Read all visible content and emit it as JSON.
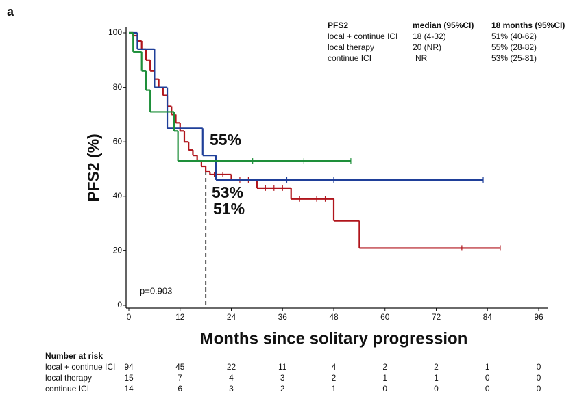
{
  "chart_data": {
    "type": "step",
    "panel_label": "a",
    "y_label": "PFS2 (%)",
    "x_label": "Months since solitary progression",
    "xlim": [
      0,
      96
    ],
    "ylim": [
      0,
      100
    ],
    "xticks": [
      0,
      12,
      24,
      36,
      48,
      60,
      72,
      84,
      96
    ],
    "yticks": [
      0,
      20,
      40,
      60,
      80,
      100
    ],
    "series": [
      {
        "name": "local + continue ICI",
        "color": "#b0151c",
        "x": [
          0,
          1,
          2,
          3,
          4,
          5,
          6,
          7,
          8,
          9,
          10,
          11,
          12,
          13,
          14,
          15,
          16,
          17,
          18,
          19,
          24,
          30,
          38,
          48,
          54
        ],
        "values": [
          100,
          99,
          97,
          94,
          90,
          86,
          83,
          80,
          77,
          73,
          70,
          67,
          64,
          60,
          57,
          55,
          53,
          51,
          49,
          48,
          46,
          43,
          39,
          31,
          21
        ],
        "censor_x": [
          20,
          22,
          26,
          28,
          32,
          34,
          36,
          40,
          44,
          46,
          78,
          87
        ],
        "censor_values": [
          48,
          48,
          46,
          46,
          43,
          43,
          43,
          39,
          39,
          39,
          21,
          21
        ]
      },
      {
        "name": "local therapy",
        "color": "#1f3f99",
        "x": [
          0,
          2,
          6,
          9,
          17.3,
          20.4
        ],
        "values": [
          100,
          94,
          80,
          65,
          55,
          46
        ],
        "censor_x": [
          37,
          48,
          83
        ],
        "censor_values": [
          46,
          46,
          46
        ]
      },
      {
        "name": "continue ICI",
        "color": "#1e8f3a",
        "x": [
          0,
          1,
          3,
          4,
          5,
          10.6,
          11.5
        ],
        "values": [
          100,
          93,
          86,
          79,
          71,
          64,
          53
        ],
        "censor_x": [
          29,
          41,
          52
        ],
        "censor_values": [
          53,
          53,
          53
        ]
      }
    ],
    "reference_line_x": 18,
    "annotations": [
      {
        "text": "55%",
        "series": 1
      },
      {
        "text": "53%",
        "series": 2
      },
      {
        "text": "51%",
        "series": 0
      }
    ],
    "p_value": "p=0.903",
    "summary_table": {
      "headers": [
        "PFS2",
        "median (95%CI)",
        "18 months (95%CI)"
      ],
      "rows": [
        [
          "local + continue ICI",
          "18 (4-32)",
          "51% (40-62)"
        ],
        [
          "local therapy",
          "20 (NR)",
          "55% (28-82)"
        ],
        [
          "continue ICI",
          "NR",
          "53% (25-81)"
        ]
      ]
    },
    "risk_table": {
      "title": "Number at risk",
      "rows": [
        {
          "name": "local + continue ICI",
          "counts": [
            94,
            45,
            22,
            11,
            4,
            2,
            2,
            1,
            0
          ]
        },
        {
          "name": "local therapy",
          "counts": [
            15,
            7,
            4,
            3,
            2,
            1,
            1,
            0,
            0
          ]
        },
        {
          "name": "continue ICI",
          "counts": [
            14,
            6,
            3,
            2,
            1,
            0,
            0,
            0,
            0
          ]
        }
      ]
    }
  }
}
